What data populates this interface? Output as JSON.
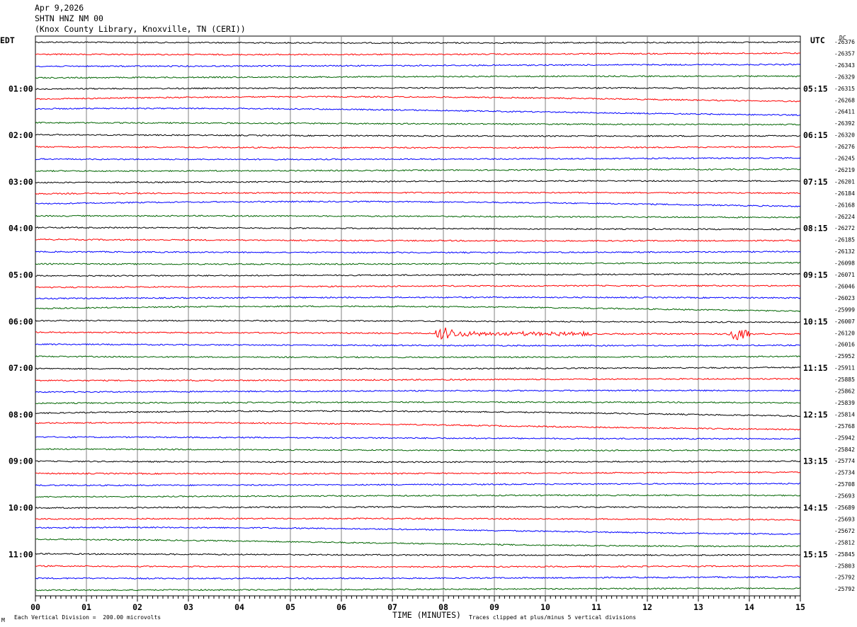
{
  "header": {
    "date": "Apr 9,2026",
    "station": "SHTN HNZ NM 00",
    "location": "(Knox County Library, Knoxville, TN (CERI))"
  },
  "labels": {
    "left_tz": "EDT",
    "right_tz": "UTC",
    "dc": "DC",
    "x_title": "TIME (MINUTES)",
    "scale_note": "Each Vertical Division =  200.00 microvolts",
    "clip_note": "Traces clipped at plus/minus 5 vertical divisions",
    "corner_mark": "M"
  },
  "colors": {
    "black": "#000000",
    "red": "#ff0000",
    "blue": "#0000ff",
    "green": "#006400",
    "grid": "#808080"
  },
  "chart_data": {
    "type": "line",
    "title": "SHTN HNZ NM 00",
    "xlabel": "TIME (MINUTES)",
    "xlim": [
      0,
      15
    ],
    "x_ticks": [
      "00",
      "01",
      "02",
      "03",
      "04",
      "05",
      "06",
      "07",
      "08",
      "09",
      "10",
      "11",
      "12",
      "13",
      "14",
      "15"
    ],
    "left_hour_labels": [
      "01:00",
      "02:00",
      "03:00",
      "04:00",
      "05:00",
      "06:00",
      "07:00",
      "08:00",
      "09:00",
      "10:00",
      "11:00"
    ],
    "right_hour_labels": [
      "05:15",
      "06:15",
      "07:15",
      "08:15",
      "09:15",
      "10:15",
      "11:15",
      "12:15",
      "13:15",
      "14:15",
      "15:15"
    ],
    "hour_label_first_row": 4,
    "rows_per_hour": 4,
    "trace_colors": [
      "black",
      "red",
      "blue",
      "green"
    ],
    "dc_offsets": [
      -26376,
      -26357,
      -26343,
      -26329,
      -26315,
      -26268,
      -26411,
      -26392,
      -26320,
      -26276,
      -26245,
      -26219,
      -26201,
      -26184,
      -26168,
      -26224,
      -26272,
      -26185,
      -26132,
      -26098,
      -26071,
      -26046,
      -26023,
      -25999,
      -26007,
      -26120,
      -26016,
      -25952,
      -25911,
      -25885,
      -25862,
      -25839,
      -25814,
      -25768,
      -25942,
      -25842,
      -25774,
      -25734,
      -25708,
      -25693,
      -25689,
      -25693,
      -25672,
      -25812,
      -25845,
      -25803,
      -25792,
      -25792
    ],
    "events": [
      {
        "row": 25,
        "start_min": 7.85,
        "end_min": 10.9,
        "peak_min": 8.0
      },
      {
        "row": 25,
        "start_min": 13.6,
        "end_min": 14.0,
        "peak_min": 13.7
      }
    ]
  }
}
